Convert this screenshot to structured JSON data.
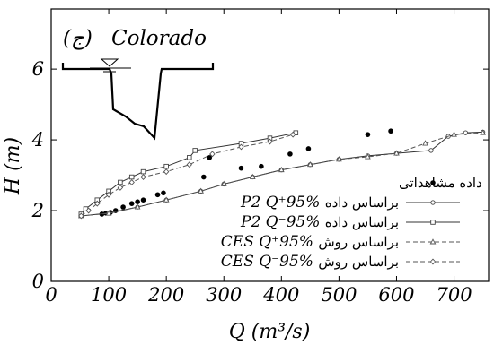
{
  "chart_data": {
    "type": "line",
    "panel_label": "(ج)",
    "site_name": "Colorado",
    "xlabel": "Q (m³/s)",
    "ylabel": "H (m)",
    "xlim": [
      0,
      760
    ],
    "ylim": [
      0,
      7.7
    ],
    "xticks": [
      0,
      100,
      200,
      300,
      400,
      500,
      600,
      700
    ],
    "yticks": [
      0,
      2,
      4,
      6
    ],
    "grid": false,
    "legend_position": "lower-right",
    "series": [
      {
        "key": "obs",
        "style": "dots",
        "legend_text": "داده مشاهداتی",
        "legend_symbol": "",
        "x": [
          88,
          95,
          103,
          112,
          125,
          140,
          150,
          160,
          185,
          195,
          265,
          275,
          330,
          365,
          415,
          447,
          550,
          590
        ],
        "y": [
          1.9,
          1.93,
          1.95,
          2.0,
          2.1,
          2.2,
          2.25,
          2.3,
          2.45,
          2.5,
          2.95,
          3.5,
          3.2,
          3.25,
          3.6,
          3.75,
          4.15,
          4.25
        ]
      },
      {
        "key": "p2_upper",
        "style": "solid-circle",
        "legend_text": "براساس داده",
        "legend_symbol": "P2 Q⁺95%",
        "x": [
          52,
          100,
          150,
          200,
          260,
          300,
          350,
          400,
          450,
          500,
          550,
          600,
          660,
          690,
          720,
          750
        ],
        "y": [
          1.85,
          1.93,
          2.1,
          2.3,
          2.55,
          2.75,
          2.95,
          3.15,
          3.3,
          3.45,
          3.55,
          3.62,
          3.7,
          4.1,
          4.2,
          4.22
        ]
      },
      {
        "key": "p2_lower",
        "style": "solid-square",
        "legend_text": "براساس داده",
        "legend_symbol": "P2 Q⁻95%",
        "x": [
          52,
          60,
          80,
          100,
          120,
          140,
          160,
          200,
          240,
          250,
          330,
          380,
          425
        ],
        "y": [
          1.9,
          2.05,
          2.3,
          2.55,
          2.8,
          2.95,
          3.1,
          3.25,
          3.5,
          3.7,
          3.9,
          4.05,
          4.2
        ]
      },
      {
        "key": "ces_upper",
        "style": "dashed-triangle",
        "legend_text": "براساس روش",
        "legend_symbol": "CES Q⁺95%",
        "x": [
          52,
          100,
          150,
          200,
          260,
          300,
          350,
          400,
          450,
          500,
          550,
          600,
          650,
          700,
          750
        ],
        "y": [
          1.85,
          1.92,
          2.1,
          2.3,
          2.55,
          2.75,
          2.95,
          3.15,
          3.3,
          3.45,
          3.52,
          3.62,
          3.9,
          4.15,
          4.2
        ]
      },
      {
        "key": "ces_lower",
        "style": "dashed-diamond",
        "legend_text": "براساس روش",
        "legend_symbol": "CES Q⁻95%",
        "x": [
          52,
          65,
          80,
          100,
          120,
          140,
          160,
          200,
          240,
          280,
          330,
          380,
          420
        ],
        "y": [
          1.85,
          2.0,
          2.2,
          2.45,
          2.65,
          2.8,
          2.95,
          3.1,
          3.3,
          3.6,
          3.8,
          3.95,
          4.15
        ]
      }
    ]
  }
}
